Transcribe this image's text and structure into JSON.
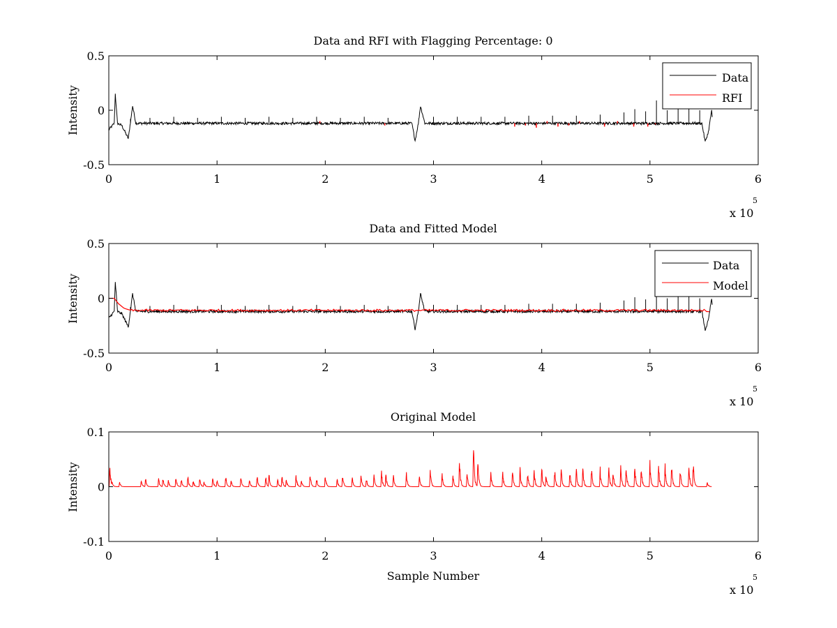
{
  "figure": {
    "background": "#ffffff",
    "data_color": "#000000",
    "rfi_color": "#ff0000",
    "model_color": "#ff0000"
  },
  "chart_data": [
    {
      "type": "line",
      "title": "Data and RFI with Flagging Percentage: 0",
      "xlabel": "",
      "ylabel": "Intensity",
      "xlim": [
        0,
        600000
      ],
      "ylim": [
        -0.5,
        0.5
      ],
      "x_ticks": [
        0,
        1,
        2,
        3,
        4,
        5,
        6
      ],
      "y_ticks": [
        "-0.5",
        "0",
        "0.5"
      ],
      "x_multiplier_label": "x 10",
      "x_multiplier_exponent": "5",
      "legend": {
        "position": "top-right",
        "entries": [
          "Data",
          "RFI"
        ]
      },
      "series": [
        {
          "name": "Data",
          "color": "#000000",
          "baseline": -0.12,
          "noise": 0.012,
          "x": [
            0,
            5000,
            6000,
            8000,
            12000,
            18000,
            22000,
            25000,
            30000,
            280000,
            283000,
            286000,
            288000,
            292000,
            295000,
            548000,
            551000,
            554000,
            557000,
            558000
          ],
          "y": [
            -0.18,
            -0.12,
            0.15,
            -0.12,
            -0.14,
            -0.26,
            0.04,
            -0.12,
            -0.12,
            -0.12,
            -0.28,
            -0.12,
            0.04,
            -0.12,
            -0.12,
            -0.12,
            -0.29,
            -0.2,
            0.0,
            -0.14
          ]
        },
        {
          "name": "RFI",
          "color": "#ff0000",
          "x": [
            195000,
            255000,
            375000,
            385000,
            395000,
            405000,
            415000,
            425000,
            435000,
            450000,
            458000,
            470000,
            485000,
            492000,
            498000,
            505000
          ],
          "y": [
            -0.1,
            -0.14,
            -0.15,
            -0.14,
            -0.16,
            -0.1,
            -0.15,
            -0.14,
            -0.1,
            -0.12,
            -0.15,
            -0.1,
            -0.15,
            -0.12,
            -0.15,
            -0.13
          ]
        }
      ],
      "spikes": {
        "x": [
          20000,
          38000,
          60000,
          82000,
          104000,
          126000,
          148000,
          170000,
          192000,
          214000,
          236000,
          258000,
          300000,
          322000,
          344000,
          366000,
          388000,
          410000,
          432000,
          454000,
          476000,
          486000,
          496000,
          506000,
          516000,
          526000,
          536000,
          546000
        ],
        "y": [
          -0.08,
          -0.07,
          -0.06,
          -0.07,
          -0.06,
          -0.07,
          -0.06,
          -0.07,
          -0.06,
          -0.07,
          -0.06,
          -0.07,
          -0.06,
          -0.06,
          -0.06,
          -0.06,
          -0.05,
          -0.05,
          -0.05,
          -0.04,
          -0.02,
          0.01,
          -0.01,
          0.09,
          0.0,
          0.02,
          0.02,
          0.0
        ]
      }
    },
    {
      "type": "line",
      "title": "Data and Fitted Model",
      "xlabel": "",
      "ylabel": "Intensity",
      "xlim": [
        0,
        600000
      ],
      "ylim": [
        -0.5,
        0.5
      ],
      "x_ticks": [
        0,
        1,
        2,
        3,
        4,
        5,
        6
      ],
      "y_ticks": [
        "-0.5",
        "0",
        "0.5"
      ],
      "x_multiplier_label": "x 10",
      "x_multiplier_exponent": "5",
      "legend": {
        "position": "top-right",
        "entries": [
          "Data",
          "Model"
        ]
      },
      "series": [
        {
          "name": "Data",
          "color": "#000000",
          "baseline": -0.12,
          "noise": 0.012,
          "x": [
            0,
            5000,
            6000,
            8000,
            12000,
            18000,
            22000,
            25000,
            30000,
            280000,
            283000,
            286000,
            288000,
            292000,
            295000,
            548000,
            551000,
            554000,
            557000,
            558000
          ],
          "y": [
            -0.18,
            -0.12,
            0.15,
            -0.12,
            -0.14,
            -0.26,
            0.04,
            -0.12,
            -0.12,
            -0.12,
            -0.28,
            -0.12,
            0.04,
            -0.12,
            -0.12,
            -0.12,
            -0.29,
            -0.2,
            0.0,
            -0.14
          ]
        },
        {
          "name": "Model",
          "color": "#ff0000",
          "x": [
            0,
            5000,
            9000,
            14000,
            20000,
            40000,
            100000,
            200000,
            280000,
            300000,
            400000,
            500000,
            550000,
            556000
          ],
          "y": [
            0.0,
            0.0,
            -0.05,
            -0.09,
            -0.11,
            -0.11,
            -0.11,
            -0.11,
            -0.11,
            -0.11,
            -0.11,
            -0.11,
            -0.11,
            -0.12
          ]
        }
      ],
      "spikes": {
        "x": [
          20000,
          38000,
          60000,
          82000,
          104000,
          126000,
          148000,
          170000,
          192000,
          214000,
          236000,
          258000,
          300000,
          322000,
          344000,
          366000,
          388000,
          410000,
          432000,
          454000,
          476000,
          486000,
          496000,
          506000,
          516000,
          526000,
          536000,
          546000
        ],
        "y": [
          -0.08,
          -0.07,
          -0.06,
          -0.07,
          -0.06,
          -0.07,
          -0.06,
          -0.07,
          -0.06,
          -0.07,
          -0.06,
          -0.07,
          -0.06,
          -0.06,
          -0.06,
          -0.06,
          -0.05,
          -0.05,
          -0.05,
          -0.04,
          -0.02,
          0.01,
          -0.01,
          0.02,
          0.0,
          0.02,
          0.02,
          0.0
        ]
      }
    },
    {
      "type": "line",
      "title": "Original Model",
      "xlabel": "Sample Number",
      "ylabel": "Intensity",
      "xlim": [
        0,
        600000
      ],
      "ylim": [
        -0.1,
        0.1
      ],
      "x_ticks": [
        0,
        1,
        2,
        3,
        4,
        5,
        6
      ],
      "y_ticks": [
        "-0.1",
        "0",
        "0.1"
      ],
      "x_multiplier_label": "x 10",
      "x_multiplier_exponent": "5",
      "legend": null,
      "series": [
        {
          "name": "",
          "color": "#ff0000",
          "baseline": 0.0,
          "x_start": 0,
          "x_end": 557000,
          "peaks_x": [
            1000,
            3000,
            10000,
            30000,
            34000,
            46000,
            50000,
            55000,
            62000,
            67000,
            73000,
            78000,
            84000,
            88000,
            96000,
            100000,
            108000,
            113000,
            122000,
            130000,
            137000,
            145000,
            148000,
            156000,
            160000,
            164000,
            173000,
            178000,
            186000,
            192000,
            200000,
            211000,
            216000,
            225000,
            233000,
            238000,
            245000,
            252000,
            256000,
            263000,
            275000,
            287000,
            297000,
            308000,
            318000,
            324000,
            331000,
            337000,
            341000,
            353000,
            364000,
            373000,
            380000,
            387000,
            393000,
            400000,
            404000,
            412000,
            418000,
            426000,
            432000,
            438000,
            446000,
            454000,
            462000,
            466000,
            473000,
            478000,
            486000,
            492000,
            500000,
            508000,
            514000,
            520000,
            528000,
            536000,
            540000,
            553000
          ],
          "peaks_y": [
            0.048,
            0.012,
            0.01,
            0.014,
            0.02,
            0.018,
            0.02,
            0.014,
            0.022,
            0.016,
            0.022,
            0.013,
            0.02,
            0.012,
            0.021,
            0.014,
            0.022,
            0.013,
            0.021,
            0.015,
            0.024,
            0.022,
            0.028,
            0.016,
            0.024,
            0.018,
            0.028,
            0.016,
            0.028,
            0.018,
            0.026,
            0.017,
            0.026,
            0.02,
            0.023,
            0.018,
            0.024,
            0.032,
            0.028,
            0.025,
            0.03,
            0.023,
            0.036,
            0.028,
            0.023,
            0.06,
            0.03,
            0.086,
            0.056,
            0.03,
            0.034,
            0.036,
            0.036,
            0.03,
            0.037,
            0.04,
            0.03,
            0.035,
            0.036,
            0.032,
            0.038,
            0.04,
            0.04,
            0.038,
            0.043,
            0.036,
            0.04,
            0.044,
            0.046,
            0.044,
            0.05,
            0.046,
            0.048,
            0.05,
            0.04,
            0.044,
            0.05,
            0.01
          ]
        }
      ]
    }
  ]
}
